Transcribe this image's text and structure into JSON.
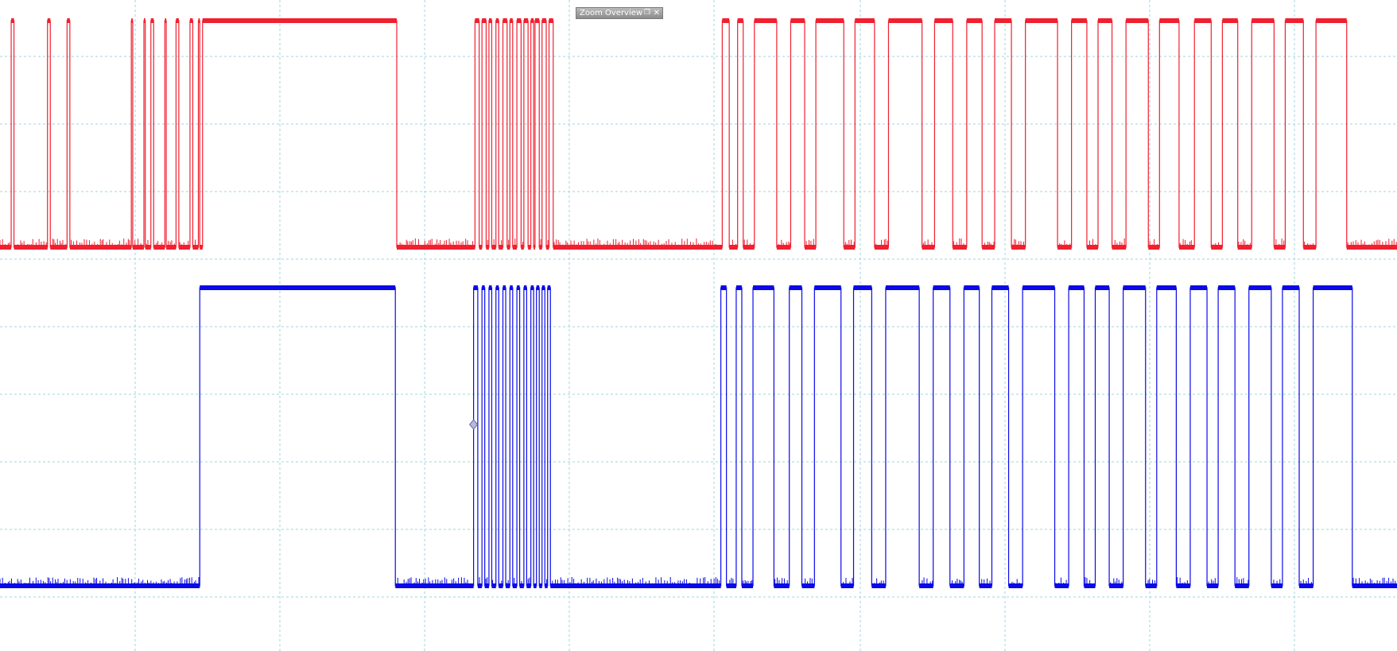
{
  "window": {
    "zoom_overview_title": "Zoom Overview",
    "pop_out_icon": "pop-out-icon",
    "close_icon": "close-icon"
  },
  "colors": {
    "channel_a": "#f02030",
    "channel_b": "#0a0ae8",
    "grid": "#9fd4dc",
    "marker": "#6a6aa6"
  },
  "chart_data": {
    "type": "line",
    "grid": true,
    "grid_divisions": {
      "x": 10,
      "y": 8
    },
    "x_range": [
      0,
      1000
    ],
    "series": [
      {
        "name": "",
        "channel": "A",
        "color": "#f02030",
        "levels": [
          0,
          1
        ],
        "pulses": [
          [
            8,
            10
          ],
          [
            34,
            36
          ],
          [
            48,
            50
          ],
          [
            94,
            95
          ],
          [
            103,
            104
          ],
          [
            108,
            110
          ],
          [
            118,
            119
          ],
          [
            126,
            128
          ],
          [
            136,
            138
          ],
          [
            142,
            143
          ],
          [
            145,
            284
          ],
          [
            340,
            343
          ],
          [
            345,
            348
          ],
          [
            350,
            352
          ],
          [
            355,
            357
          ],
          [
            360,
            363
          ],
          [
            365,
            367
          ],
          [
            370,
            373
          ],
          [
            375,
            378
          ],
          [
            380,
            382
          ],
          [
            383,
            386
          ],
          [
            388,
            391
          ],
          [
            393,
            396
          ],
          [
            517,
            522
          ],
          [
            528,
            532
          ],
          [
            540,
            556
          ],
          [
            566,
            576
          ],
          [
            584,
            604
          ],
          [
            612,
            626
          ],
          [
            636,
            660
          ],
          [
            669,
            682
          ],
          [
            692,
            703
          ],
          [
            712,
            724
          ],
          [
            734,
            757
          ],
          [
            767,
            778
          ],
          [
            786,
            796
          ],
          [
            806,
            822
          ],
          [
            830,
            844
          ],
          [
            855,
            867
          ],
          [
            875,
            886
          ],
          [
            896,
            912
          ],
          [
            920,
            933
          ],
          [
            942,
            964
          ]
        ]
      },
      {
        "name": "",
        "channel": "B",
        "color": "#0a0ae8",
        "levels": [
          0,
          1
        ],
        "pulses": [
          [
            143,
            283
          ],
          [
            339,
            342
          ],
          [
            345,
            347
          ],
          [
            350,
            352
          ],
          [
            355,
            357
          ],
          [
            360,
            362
          ],
          [
            365,
            367
          ],
          [
            370,
            372
          ],
          [
            375,
            377
          ],
          [
            380,
            382
          ],
          [
            384,
            386
          ],
          [
            388,
            390
          ],
          [
            392,
            394
          ],
          [
            516,
            520
          ],
          [
            527,
            531
          ],
          [
            539,
            554
          ],
          [
            565,
            574
          ],
          [
            583,
            602
          ],
          [
            611,
            624
          ],
          [
            634,
            658
          ],
          [
            668,
            680
          ],
          [
            690,
            701
          ],
          [
            710,
            722
          ],
          [
            732,
            755
          ],
          [
            765,
            776
          ],
          [
            784,
            794
          ],
          [
            804,
            820
          ],
          [
            828,
            842
          ],
          [
            852,
            864
          ],
          [
            872,
            884
          ],
          [
            894,
            910
          ],
          [
            918,
            930
          ],
          [
            940,
            968
          ]
        ],
        "marker_x": 339
      }
    ]
  }
}
